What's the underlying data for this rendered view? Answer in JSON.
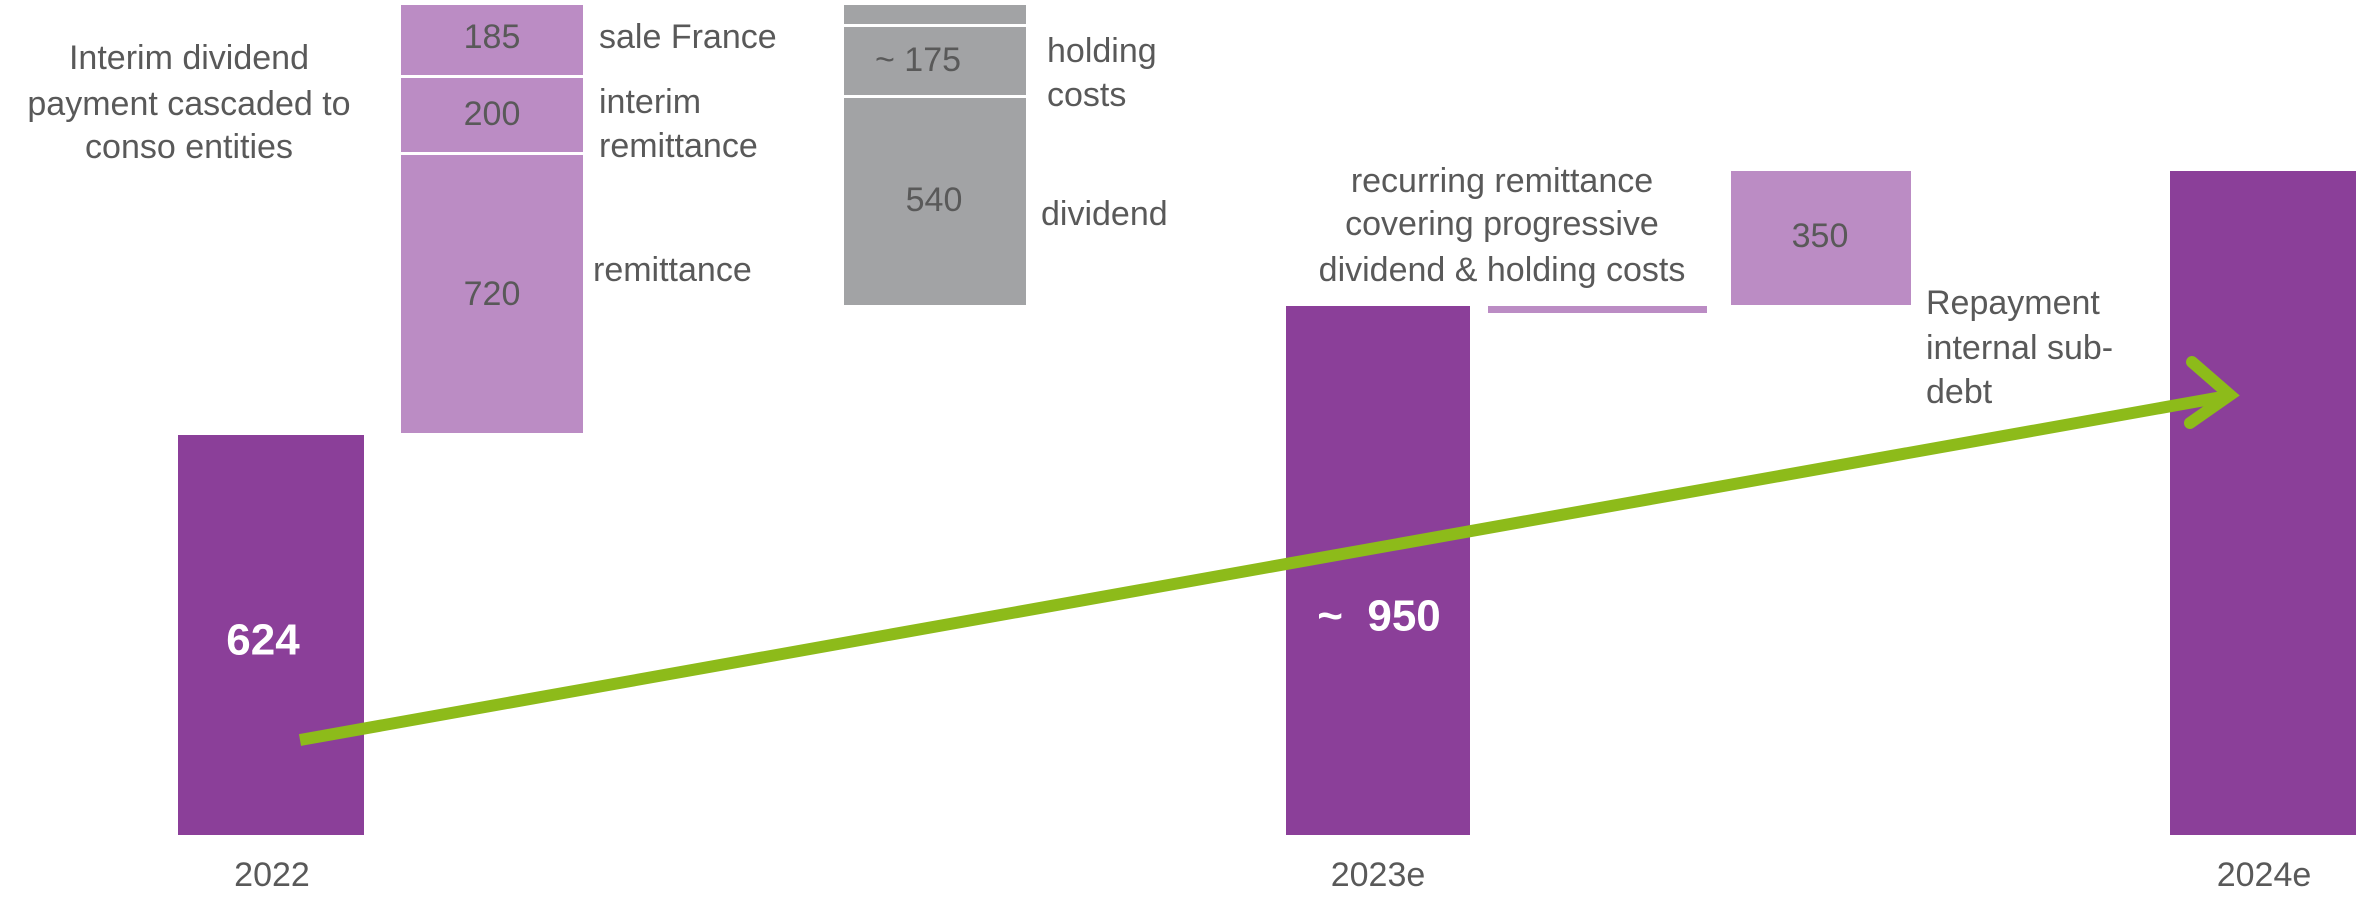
{
  "left_note": [
    "Interim dividend",
    "payment cascaded to",
    "conso entities"
  ],
  "bars": {
    "base_2022": {
      "label": "624",
      "year": "2022"
    },
    "remittance": {
      "label": "720",
      "caption": [
        "remittance"
      ]
    },
    "interim_remittance": {
      "label": "200",
      "caption": [
        "interim",
        "remittance"
      ]
    },
    "sale_france": {
      "label": "185",
      "caption": [
        "sale France"
      ]
    },
    "dividend": {
      "label": "540",
      "caption": [
        "dividend"
      ]
    },
    "holding_costs": {
      "label": "~ 175",
      "caption": [
        "holding",
        "costs"
      ]
    },
    "total_2023e": {
      "label": "~  950",
      "year": "2023e"
    },
    "recurring_note": [
      "recurring remittance",
      "covering progressive",
      "dividend & holding costs"
    ],
    "repayment": {
      "label": "350",
      "caption": [
        "Repayment",
        "internal sub-",
        "debt"
      ]
    },
    "total_2024e": {
      "year": "2024e"
    }
  }
}
